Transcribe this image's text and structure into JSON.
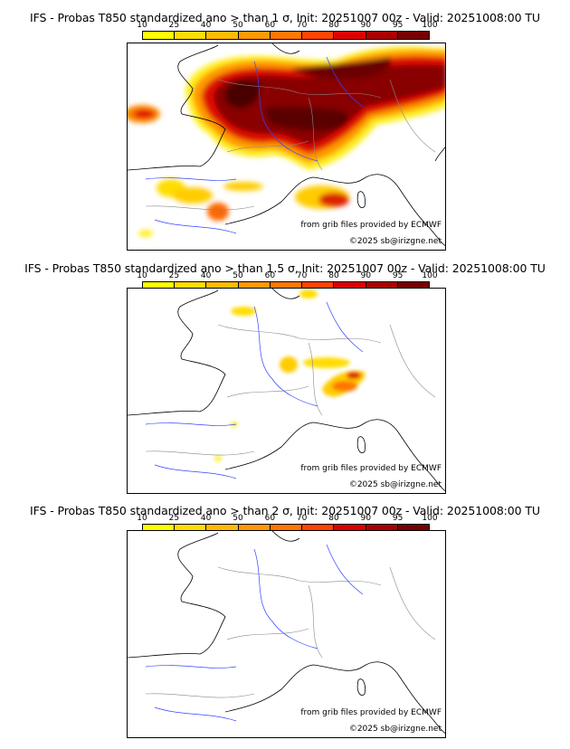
{
  "colorbar": {
    "ticks": [
      "10",
      "25",
      "40",
      "50",
      "60",
      "70",
      "80",
      "90",
      "95",
      "100"
    ],
    "colors": [
      "#ffff00",
      "#ffdd00",
      "#ffbb00",
      "#ff9900",
      "#ff7700",
      "#ff4400",
      "#dd0000",
      "#aa0000",
      "#770000"
    ]
  },
  "panels": [
    {
      "title": "IFS - Probas T850  standardized ano > than 1 σ, Init: 20251007 00z - Valid: 20251008:00 TU",
      "credit": "from grib files provided by ECMWF",
      "copyright": "©2025 sb@irizgne.net"
    },
    {
      "title": "IFS - Probas T850  standardized ano > than 1.5 σ, Init: 20251007 00z - Valid: 20251008:00 TU",
      "credit": "from grib files provided by ECMWF",
      "copyright": "©2025 sb@irizgne.net"
    },
    {
      "title": "IFS - Probas T850  standardized ano > than 2 σ, Init: 20251007 00z - Valid: 20251008:00 TU",
      "credit": "from grib files provided by ECMWF",
      "copyright": "©2025 sb@irizgne.net"
    }
  ]
}
